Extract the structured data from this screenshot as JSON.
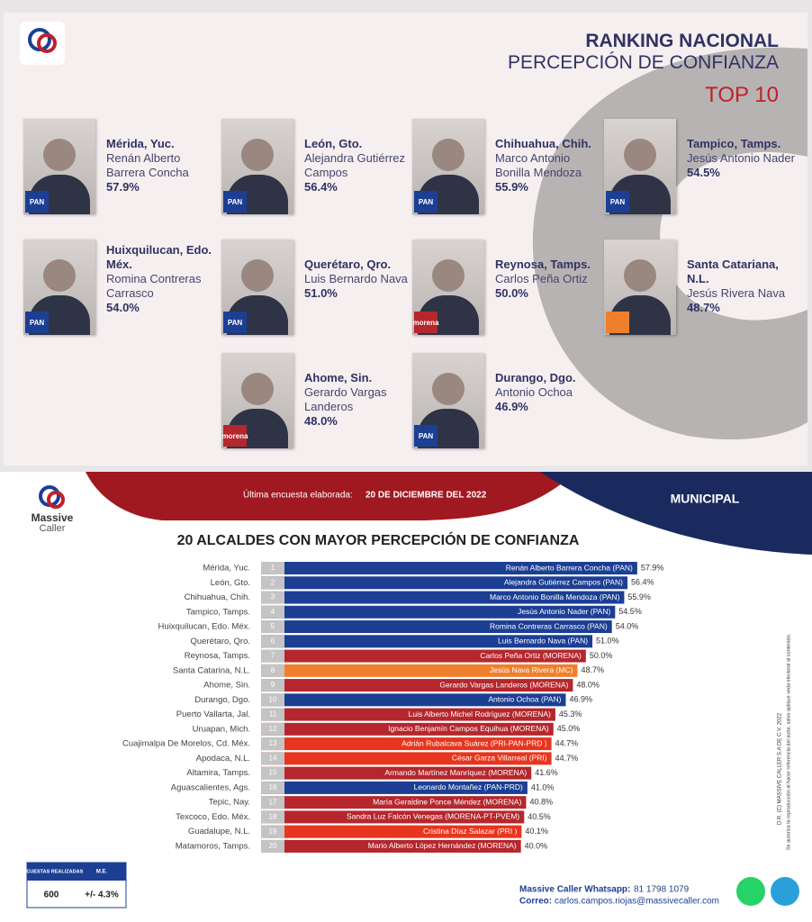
{
  "header": {
    "title": "RANKING NACIONAL",
    "subtitle": "PERCEPCIÓN DE CONFIANZA",
    "tag": "TOP 10"
  },
  "cards": [
    {
      "city": "Mérida, Yuc.",
      "name": "Renán Alberto Barrera Concha",
      "value": "57.9%",
      "badge": "PAN",
      "badge_color": "#1c3f94"
    },
    {
      "city": "León, Gto.",
      "name": "Alejandra Gutiérrez Campos",
      "value": "56.4%",
      "badge": "PAN",
      "badge_color": "#1c3f94"
    },
    {
      "city": "Chihuahua, Chih.",
      "name": "Marco Antonio Bonilla Mendoza",
      "value": "55.9%",
      "badge": "PAN",
      "badge_color": "#1c3f94"
    },
    {
      "city": "Tampico, Tamps.",
      "name": "Jesús Antonio Nader",
      "value": "54.5%",
      "badge": "PAN",
      "badge_color": "#1c3f94"
    },
    {
      "city": "Huixquilucan, Edo. Méx.",
      "name": "Romina Contreras Carrasco",
      "value": "54.0%",
      "badge": "PAN",
      "badge_color": "#1c3f94"
    },
    {
      "city": "Querétaro, Qro.",
      "name": "Luis Bernardo Nava",
      "value": "51.0%",
      "badge": "PAN",
      "badge_color": "#1c3f94"
    },
    {
      "city": "Reynosa, Tamps.",
      "name": "Carlos Peña Ortiz",
      "value": "50.0%",
      "badge": "morena",
      "badge_color": "#b5272d"
    },
    {
      "city": "Santa Catariana, N.L.",
      "name": "Jesús Rivera Nava",
      "value": "48.7%",
      "badge_color": "#f07f2d"
    },
    {
      "city": "Ahome, Sin.",
      "name": "Gerardo Vargas Landeros",
      "value": "48.0%",
      "badge": "morena",
      "badge_color": "#b5272d"
    },
    {
      "city": "Durango, Dgo.",
      "name": "Antonio Ochoa",
      "value": "46.9%",
      "badge": "PAN",
      "badge_color": "#1c3f94"
    }
  ],
  "banner": {
    "survey_label": "Última encuesta elaborada:",
    "survey_date": "20 DE DICIEMBRE DEL 2022",
    "section": "MUNICIPAL",
    "brand_1": "Massive",
    "brand_2": "Caller"
  },
  "chart_data": {
    "type": "hbar",
    "title": "20 ALCALDES CON MAYOR PERCEPCIÓN DE CONFIANZA",
    "categories": [
      "Mérida, Yuc.",
      "León, Gto.",
      "Chihuahua, Chih.",
      "Tampico, Tamps.",
      "Huixquilucan, Edo. Méx.",
      "Querétaro, Qro.",
      "Reynosa, Tamps.",
      "Santa Catarina, N.L.",
      "Ahome, Sin.",
      "Durango, Dgo.",
      "Puerto Vallarta, Jal.",
      "Uruapan, Mich.",
      "Cuajimalpa De Morelos, Cd. Méx.",
      "Apodaca, N.L.",
      "Altamira, Tamps.",
      "Aguascalientes, Ags.",
      "Tepic, Nay.",
      "Texcoco, Edo. Méx.",
      "Guadalupe, N.L.",
      "Matamoros, Tamps."
    ],
    "ranks": [
      1,
      2,
      3,
      4,
      5,
      6,
      7,
      8,
      9,
      10,
      11,
      12,
      13,
      14,
      15,
      16,
      17,
      18,
      19,
      20
    ],
    "bar_labels": [
      "Renán Alberto Barrera Concha (PAN)",
      "Alejandra Gutiérrez Campos (PAN)",
      "Marco Antonio Bonilla Mendoza (PAN)",
      "Jesús Antonio Nader  (PAN)",
      "Romina Contreras Carrasco  (PAN)",
      "Luis Bernardo Nava (PAN)",
      "Carlos Peña Ortiz (MORENA)",
      "Jesús Nava Rivera (MC)",
      "Gerardo Vargas Landeros (MORENA)",
      "Antonio Ochoa (PAN)",
      "Luis Alberto Michel Rodríguez (MORENA)",
      "Ignacio Benjamín Campos Equihua (MORENA)",
      "Adrián Rubalcava Suárez (PRI-PAN-PRD )",
      "César Garza Villarreal (PRI)",
      "Armando Martínez Manríquez (MORENA)",
      "Leonardo Montañez (PAN-PRD)",
      "María Geraldine Ponce Méndez (MORENA)",
      "Sandra Luz Falcón Venegas (MORENA-PT-PVEM)",
      "Cristina Díaz Salazar (PRI )",
      "Mario Alberto López Hernández (MORENA)"
    ],
    "values": [
      57.9,
      56.4,
      55.9,
      54.5,
      54.0,
      51.0,
      50.0,
      48.7,
      48.0,
      46.9,
      45.3,
      45.0,
      44.7,
      44.7,
      41.6,
      41.0,
      40.8,
      40.5,
      40.1,
      40.0
    ],
    "value_labels": [
      "57.9%",
      "56.4%",
      "55.9%",
      "54.5%",
      "54.0%",
      "51.0%",
      "50.0%",
      "48.7%",
      "48.0%",
      "46.9%",
      "45.3%",
      "45.0%",
      "44.7%",
      "44.7%",
      "41.6%",
      "41.0%",
      "40.8%",
      "40.5%",
      "40.1%",
      "40.0%"
    ],
    "colors": [
      "#1c3f94",
      "#1c3f94",
      "#1c3f94",
      "#1c3f94",
      "#1c3f94",
      "#1c3f94",
      "#b5272d",
      "#f07f2d",
      "#b5272d",
      "#1c3f94",
      "#b5272d",
      "#b5272d",
      "#e8351e",
      "#e8351e",
      "#b5272d",
      "#1c3f94",
      "#b5272d",
      "#b5272d",
      "#e8351e",
      "#b5272d"
    ],
    "xlim": [
      0,
      60
    ]
  },
  "footer": {
    "surveys_header": "ENCUESTAS REALIZADAS",
    "me_header": "M.E.",
    "surveys": "600",
    "me": "+/- 4.3%",
    "whatsapp_label": "Massive Caller Whatsapp:",
    "whatsapp": "81 1798 1079",
    "email_label": "Correo:",
    "email": "carlos.campos.riojas@massivecaller.com",
    "copyright": "D.R. (C) MASSIVE CALLER S.A DE C.V. 2022",
    "notice": "Se autoriza la reproducción al hacer referencia del autor, salvo aplique veda electoral al contenido."
  }
}
